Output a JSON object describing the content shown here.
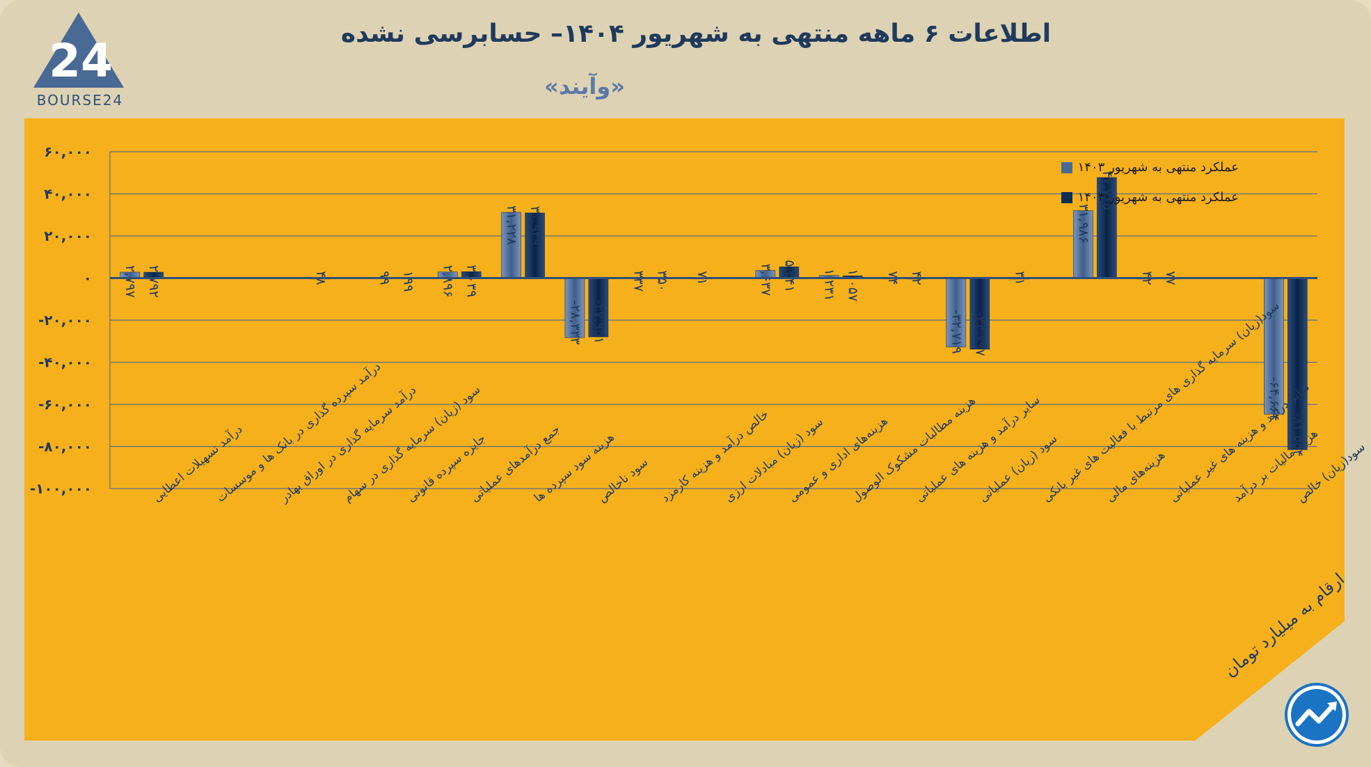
{
  "header": {
    "title": "اطلاعات ۶ ماهه منتهی به شهریور  ۱۴۰۴– حسابرسی نشده",
    "subtitle": "«وآیند»",
    "logo_text": "BOURSE24",
    "logo_mark": "24"
  },
  "footer": {
    "unit_note": "ارقام به میلیارد تومان"
  },
  "colors": {
    "background": "#ddd2b3",
    "panel": "#f6b01c",
    "series_1403": "#4a6a96",
    "series_1404": "#0f2d55",
    "axis": "#2f4f7a",
    "grid": "#5d6b83"
  },
  "chart_data": {
    "type": "bar",
    "title": "اطلاعات ۶ ماهه منتهی به شهریور  ۱۴۰۴– حسابرسی نشده",
    "ylim": [
      -100000,
      60000
    ],
    "yticks": [
      60000,
      40000,
      20000,
      0,
      -20000,
      -40000,
      -60000,
      -80000,
      -100000
    ],
    "ytick_labels": [
      "۶۰,۰۰۰",
      "۴۰,۰۰۰",
      "۲۰,۰۰۰",
      "۰",
      "-۲۰,۰۰۰",
      "-۴۰,۰۰۰",
      "-۶۰,۰۰۰",
      "-۸۰,۰۰۰",
      "-۱۰۰,۰۰۰"
    ],
    "grid": true,
    "legend_position": "top-right",
    "categories": [
      "درآمد تسهیلات اعطایی",
      "درآمد سپرده گذاری در بانک ها و موسسات",
      "درآمد سرمایه گذاری در اوراق بهادر",
      "سود (زیان) سرمایه گذاری در سهام",
      "جایزه سپرده قانونی",
      "جمع درآمدهای عملیاتی",
      "هزینه سود سپرده ها",
      "سود ناخالص",
      "خالص درآمد و هزینه کارمزد",
      "سود (زیان) مبادلات ارزی",
      "هزینه‌های اداری و عمومی",
      "هزینه مطالبات مشکوک الوصول",
      "سایر درآمد و هزینه های عملیاتی",
      "سود (زیان) عملیاتی",
      "سود(زیان) سرمایه گذاری های مرتبط با فعالیت های غیر بانکی",
      "هزینه‌های مالی",
      "سایر درآمد و هزینه های غیر عملیاتی",
      "هزینه مالیات بر درآمد",
      "سود(زیان) خالص"
    ],
    "series": [
      {
        "name": "عملکرد منتهی به شهریور ۱۴۰۳",
        "values": [
          2797,
          null,
          null,
          48,
          99,
          2896,
          31228,
          -28333,
          337,
          71,
          3637,
          1231,
          74,
          -32719,
          31,
          31986,
          42,
          null,
          -64664
        ],
        "labels": [
          "۲,۷۹۷",
          "",
          "",
          "۴۸",
          "۹۹",
          "۲,۸۹۶",
          "۳۱,۲۲۸",
          "-۲۸,۳۳۳",
          "۳۳۷",
          "۷۱",
          "۳,۶۳۷",
          "۱,۲۳۱",
          "۷۴",
          "-۳۲,۷۱۹",
          "۳۱",
          "۳۱,۹۸۶",
          "۴۲",
          "",
          "-۶۴,۶۶۴"
        ]
      },
      {
        "name": "عملکرد منتهی به شهریور ۱۴۰۴",
        "values": [
          2792,
          null,
          null,
          null,
          199,
          3039,
          30939,
          -27951,
          350,
          null,
          5341,
          1057,
          42,
          -33797,
          null,
          47765,
          77,
          null,
          -81554
        ],
        "labels": [
          "۲,۷۹۲",
          "",
          "",
          "",
          "۱۹۹",
          "۳,۰۳۹",
          "۳۰,۹۳۹",
          "-۲۷,۹۵۱",
          "۳۵۰",
          "",
          "۵,۳۴۱",
          "۱,۰۵۷",
          "۴۲",
          "-۳۳,۷۹۷",
          "",
          "۴۷,۷۶۵",
          "۷۷",
          "",
          "-۸۱,۵۵۴"
        ]
      }
    ]
  }
}
